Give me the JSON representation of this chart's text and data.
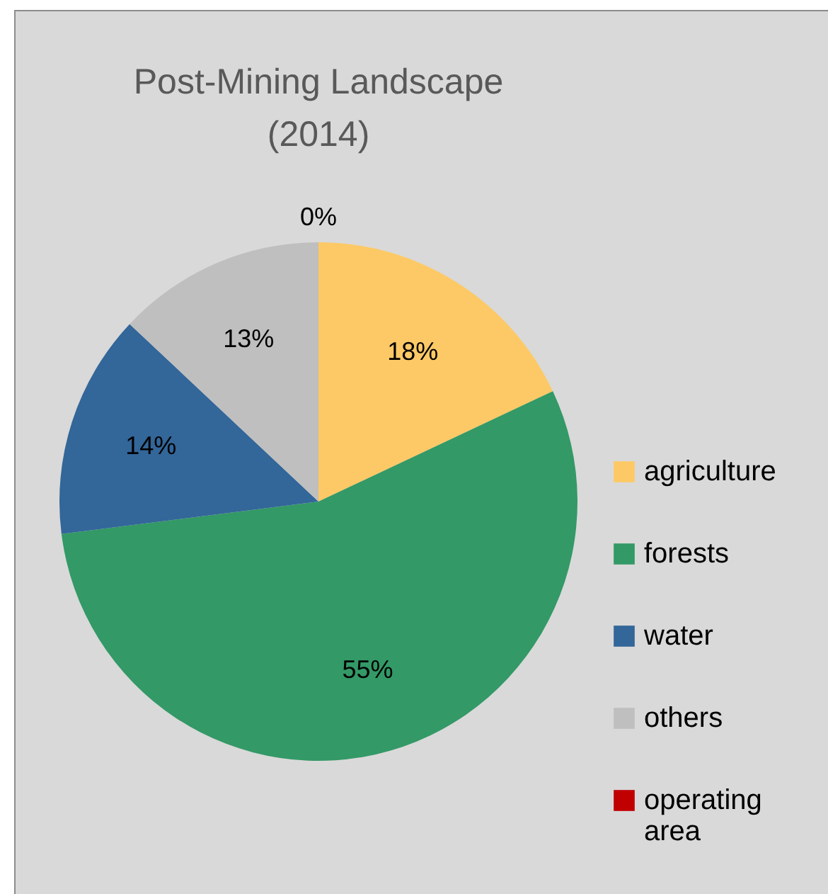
{
  "chart_data": {
    "type": "pie",
    "title": "Post-Mining Landscape\n(2014)",
    "categories": [
      "agriculture",
      "forests",
      "water",
      "others",
      "operating area"
    ],
    "values": [
      18,
      55,
      14,
      13,
      0
    ],
    "colors": [
      "#fdc966",
      "#339966",
      "#336699",
      "#bfbfbf",
      "#c00000"
    ],
    "value_labels": [
      "18%",
      "55%",
      "14%",
      "13%",
      "0%"
    ],
    "legend": "right"
  }
}
